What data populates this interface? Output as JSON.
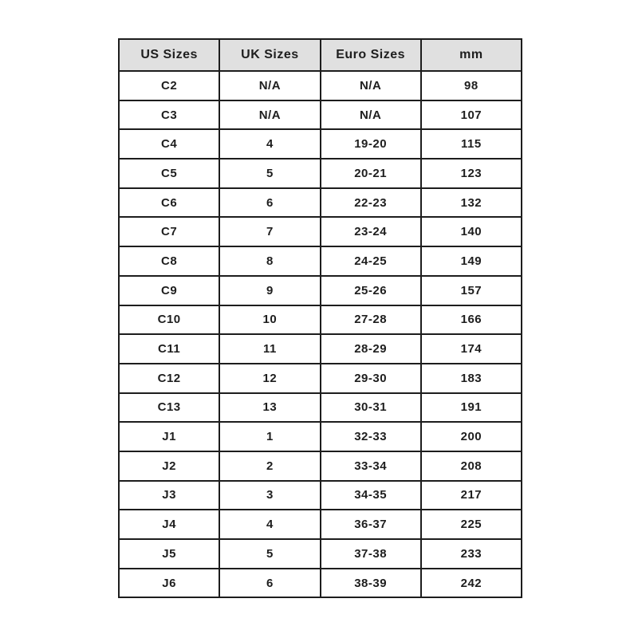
{
  "table": {
    "name": "shoe-size-conversion-chart",
    "columns": [
      "US Sizes",
      "UK Sizes",
      "Euro Sizes",
      "mm"
    ],
    "rows": [
      [
        "C2",
        "N/A",
        "N/A",
        "98"
      ],
      [
        "C3",
        "N/A",
        "N/A",
        "107"
      ],
      [
        "C4",
        "4",
        "19-20",
        "115"
      ],
      [
        "C5",
        "5",
        "20-21",
        "123"
      ],
      [
        "C6",
        "6",
        "22-23",
        "132"
      ],
      [
        "C7",
        "7",
        "23-24",
        "140"
      ],
      [
        "C8",
        "8",
        "24-25",
        "149"
      ],
      [
        "C9",
        "9",
        "25-26",
        "157"
      ],
      [
        "C10",
        "10",
        "27-28",
        "166"
      ],
      [
        "C11",
        "11",
        "28-29",
        "174"
      ],
      [
        "C12",
        "12",
        "29-30",
        "183"
      ],
      [
        "C13",
        "13",
        "30-31",
        "191"
      ],
      [
        "J1",
        "1",
        "32-33",
        "200"
      ],
      [
        "J2",
        "2",
        "33-34",
        "208"
      ],
      [
        "J3",
        "3",
        "34-35",
        "217"
      ],
      [
        "J4",
        "4",
        "36-37",
        "225"
      ],
      [
        "J5",
        "5",
        "37-38",
        "233"
      ],
      [
        "J6",
        "6",
        "38-39",
        "242"
      ]
    ],
    "colors": {
      "header_bg": "#e0e0e0",
      "border": "#1d1d1d",
      "text": "#1e1e1e",
      "page_bg": "#ffffff"
    }
  }
}
